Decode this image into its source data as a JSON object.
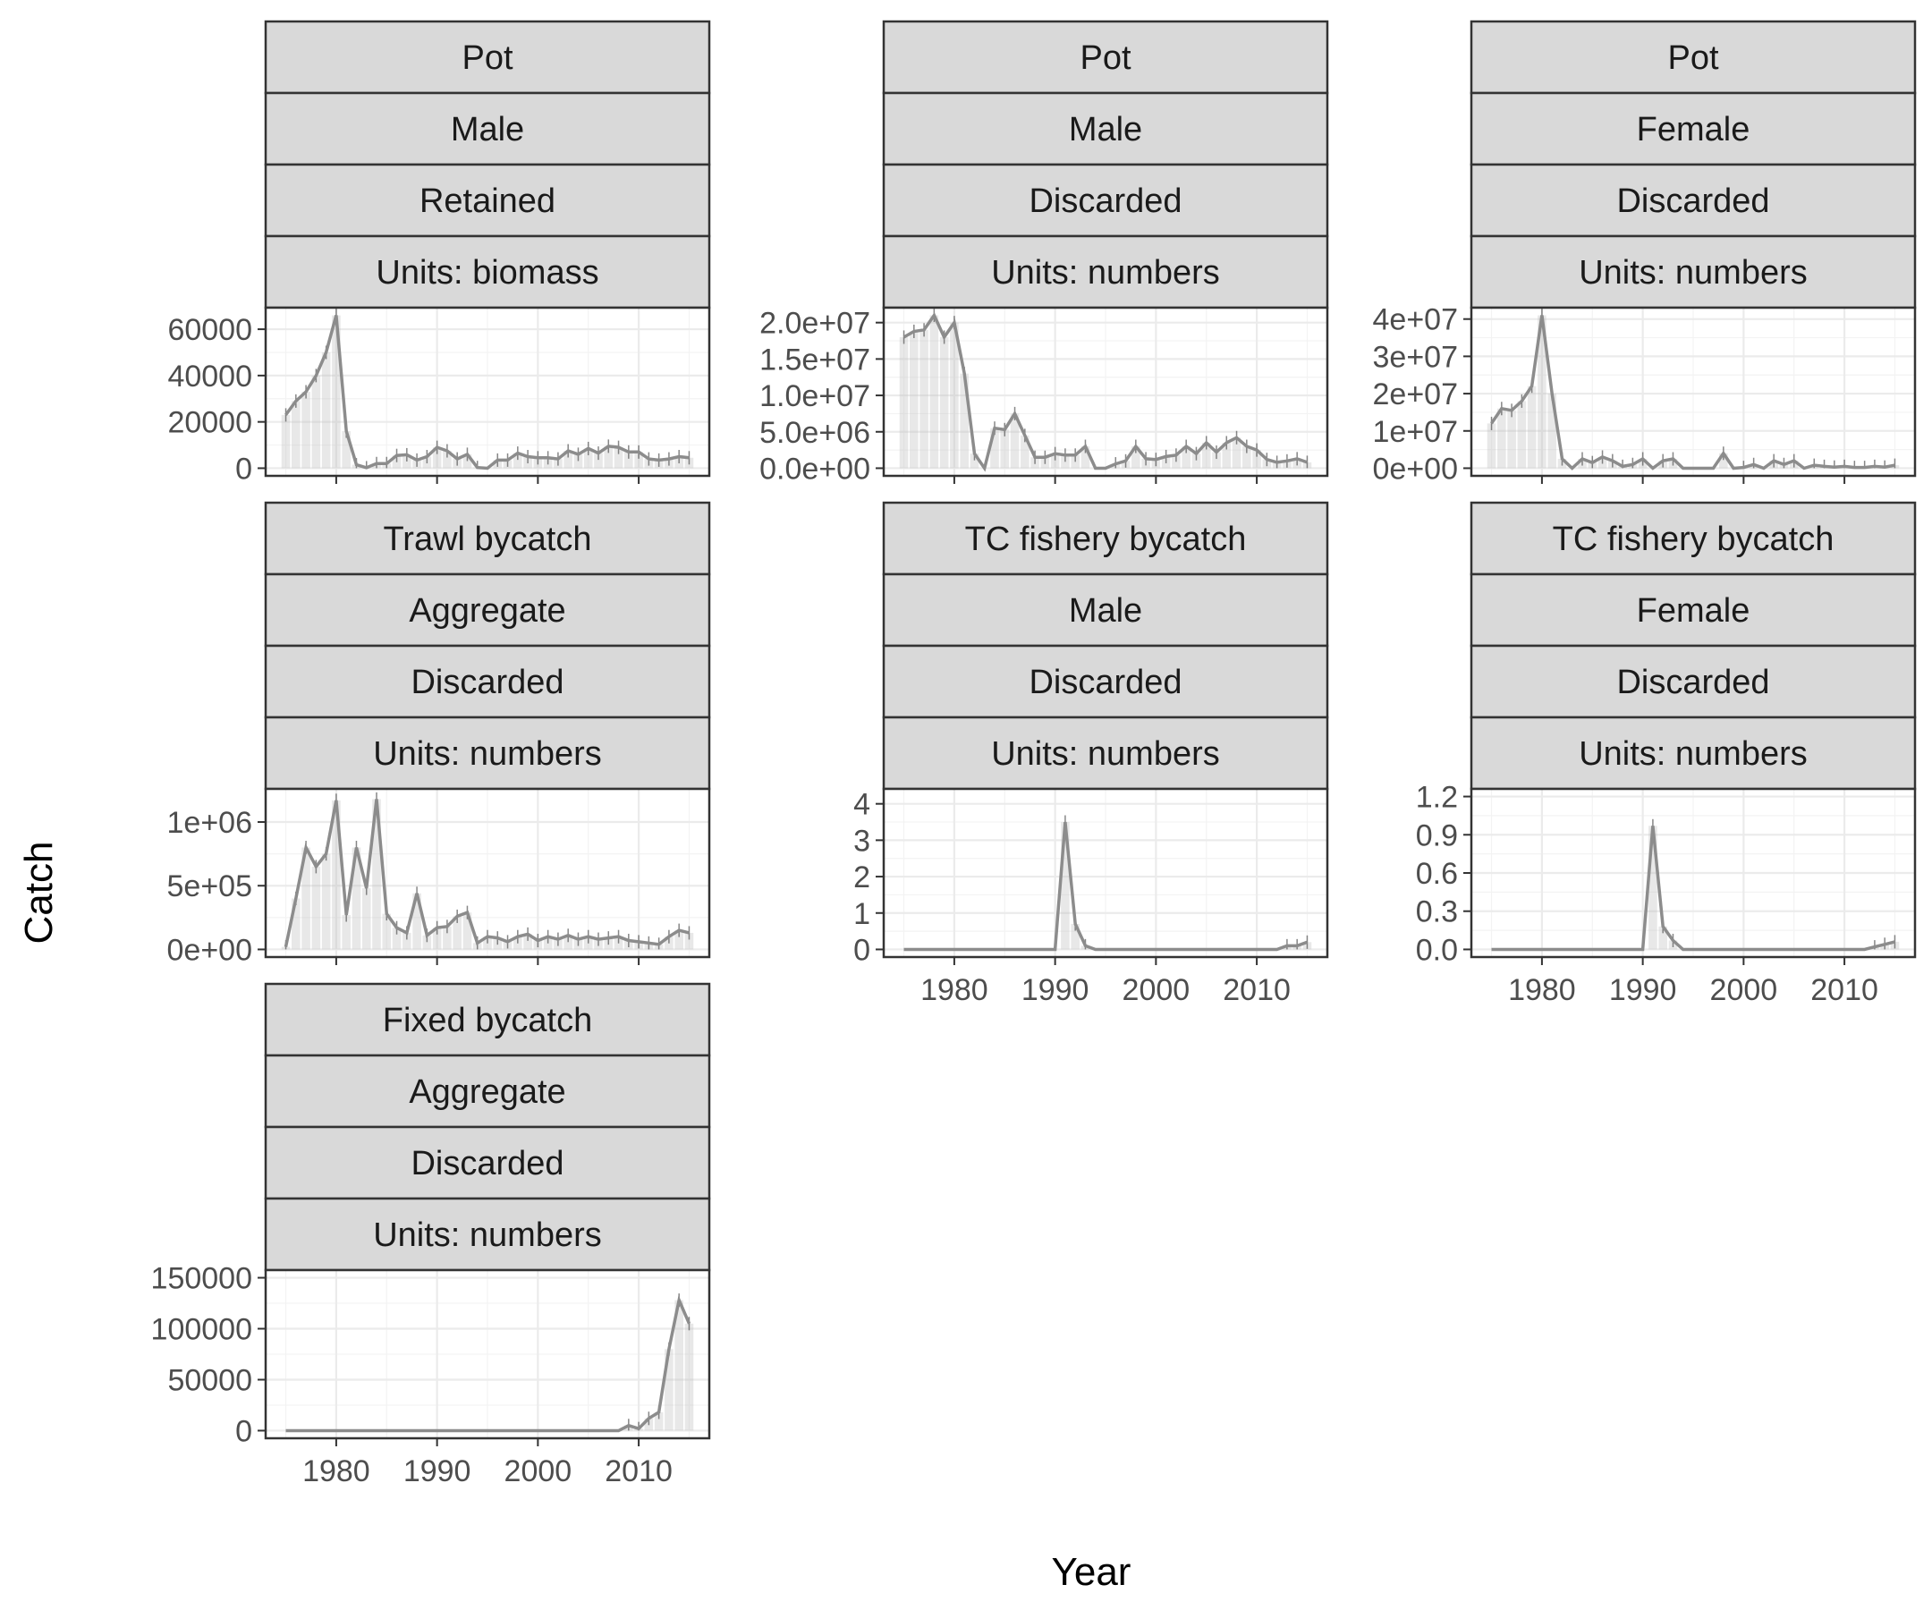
{
  "axes": {
    "xlabel": "Year",
    "ylabel": "Catch"
  },
  "colors": {
    "strip_fill": "#d9d9d9",
    "line": "#8c8c8c",
    "border": "#333333"
  },
  "chart_data": [
    {
      "type": "line",
      "strips": [
        "Pot",
        "Male",
        "Retained",
        "Units: biomass"
      ],
      "x": [
        1975,
        1976,
        1977,
        1978,
        1979,
        1980,
        1981,
        1982,
        1983,
        1984,
        1985,
        1986,
        1987,
        1988,
        1989,
        1990,
        1991,
        1992,
        1993,
        1994,
        1995,
        1996,
        1997,
        1998,
        1999,
        2000,
        2001,
        2002,
        2003,
        2004,
        2005,
        2006,
        2007,
        2008,
        2009,
        2010,
        2011,
        2012,
        2013,
        2014,
        2015
      ],
      "values": [
        23000,
        29000,
        33000,
        40000,
        50000,
        66000,
        16000,
        1500,
        200,
        2000,
        2000,
        5500,
        5800,
        3500,
        5000,
        9000,
        7500,
        4000,
        6000,
        300,
        0,
        3500,
        3500,
        6500,
        5000,
        4500,
        4500,
        4000,
        7500,
        6000,
        8500,
        6500,
        9500,
        9000,
        7000,
        7000,
        4000,
        3500,
        4000,
        5000,
        4500
      ],
      "ylim": [
        -3300,
        69300
      ],
      "yticks": [
        0,
        20000,
        40000,
        60000
      ],
      "ytick_labels": [
        "0",
        "20000",
        "40000",
        "60000"
      ],
      "xlim": [
        1973,
        2017
      ],
      "xticks": [
        1980,
        1990,
        2000,
        2010
      ],
      "xtick_labels": []
    },
    {
      "type": "line",
      "strips": [
        "Pot",
        "Male",
        "Discarded",
        "Units: numbers"
      ],
      "x": [
        1975,
        1976,
        1977,
        1978,
        1979,
        1980,
        1981,
        1982,
        1983,
        1984,
        1985,
        1986,
        1987,
        1988,
        1989,
        1990,
        1991,
        1992,
        1993,
        1994,
        1995,
        1996,
        1997,
        1998,
        1999,
        2000,
        2001,
        2002,
        2003,
        2004,
        2005,
        2006,
        2007,
        2008,
        2009,
        2010,
        2011,
        2012,
        2013,
        2014,
        2015
      ],
      "values": [
        18000000,
        18800000,
        19000000,
        21000000,
        18000000,
        20000000,
        13000000,
        2000000,
        0,
        5500000,
        5300000,
        7500000,
        4500000,
        1500000,
        1500000,
        2000000,
        1800000,
        1800000,
        3000000,
        0,
        0,
        600000,
        1000000,
        3000000,
        1300000,
        1200000,
        1600000,
        1800000,
        3000000,
        2000000,
        3500000,
        2200000,
        3500000,
        4200000,
        3000000,
        2500000,
        1200000,
        800000,
        1000000,
        1300000,
        800000
      ],
      "ylim": [
        -1050000,
        22050000
      ],
      "yticks": [
        0,
        5000000,
        10000000,
        15000000,
        20000000
      ],
      "ytick_labels": [
        "0.0e+00",
        "5.0e+06",
        "1.0e+07",
        "1.5e+07",
        "2.0e+07"
      ],
      "xlim": [
        1973,
        2017
      ],
      "xticks": [
        1980,
        1990,
        2000,
        2010
      ],
      "xtick_labels": []
    },
    {
      "type": "line",
      "strips": [
        "Pot",
        "Female",
        "Discarded",
        "Units: numbers"
      ],
      "x": [
        1975,
        1976,
        1977,
        1978,
        1979,
        1980,
        1981,
        1982,
        1983,
        1984,
        1985,
        1986,
        1987,
        1988,
        1989,
        1990,
        1991,
        1992,
        1993,
        1994,
        1995,
        1996,
        1997,
        1998,
        1999,
        2000,
        2001,
        2002,
        2003,
        2004,
        2005,
        2006,
        2007,
        2008,
        2009,
        2010,
        2011,
        2012,
        2013,
        2014,
        2015
      ],
      "values": [
        12000000,
        16000000,
        15500000,
        18000000,
        22000000,
        41000000,
        20000000,
        2500000,
        0,
        2500000,
        1500000,
        3000000,
        2000000,
        500000,
        1000000,
        2500000,
        0,
        2000000,
        2500000,
        0,
        0,
        0,
        0,
        4000000,
        0,
        200000,
        1000000,
        0,
        2000000,
        1000000,
        2000000,
        0,
        800000,
        500000,
        300000,
        500000,
        200000,
        200000,
        500000,
        300000,
        800000
      ],
      "ylim": [
        -2050000,
        43050000
      ],
      "yticks": [
        0,
        10000000,
        20000000,
        30000000,
        40000000
      ],
      "ytick_labels": [
        "0e+00",
        "1e+07",
        "2e+07",
        "3e+07",
        "4e+07"
      ],
      "xlim": [
        1973,
        2017
      ],
      "xticks": [
        1980,
        1990,
        2000,
        2010
      ],
      "xtick_labels": []
    },
    {
      "type": "line",
      "strips": [
        "Trawl bycatch",
        "Aggregate",
        "Discarded",
        "Units: numbers"
      ],
      "x": [
        1975,
        1976,
        1977,
        1978,
        1979,
        1980,
        1981,
        1982,
        1983,
        1984,
        1985,
        1986,
        1987,
        1988,
        1989,
        1990,
        1991,
        1992,
        1993,
        1994,
        1995,
        1996,
        1997,
        1998,
        1999,
        2000,
        2001,
        2002,
        2003,
        2004,
        2005,
        2006,
        2007,
        2008,
        2009,
        2010,
        2011,
        2012,
        2013,
        2014,
        2015
      ],
      "values": [
        20000,
        400000,
        800000,
        650000,
        750000,
        1170000,
        270000,
        800000,
        480000,
        1180000,
        280000,
        170000,
        130000,
        440000,
        110000,
        170000,
        180000,
        260000,
        290000,
        50000,
        100000,
        90000,
        60000,
        100000,
        120000,
        70000,
        100000,
        80000,
        110000,
        80000,
        100000,
        80000,
        90000,
        100000,
        70000,
        60000,
        50000,
        40000,
        100000,
        150000,
        130000
      ],
      "ylim": [
        -60000,
        1260000
      ],
      "yticks": [
        0,
        500000,
        1000000
      ],
      "ytick_labels": [
        "0e+00",
        "5e+05",
        "1e+06"
      ],
      "xlim": [
        1973,
        2017
      ],
      "xticks": [
        1980,
        1990,
        2000,
        2010
      ],
      "xtick_labels": []
    },
    {
      "type": "line",
      "strips": [
        "TC fishery bycatch",
        "Male",
        "Discarded",
        "Units: numbers"
      ],
      "x": [
        1975,
        1976,
        1977,
        1978,
        1979,
        1980,
        1981,
        1982,
        1983,
        1984,
        1985,
        1986,
        1987,
        1988,
        1989,
        1990,
        1991,
        1992,
        1993,
        1994,
        1995,
        1996,
        1997,
        1998,
        1999,
        2000,
        2001,
        2002,
        2003,
        2004,
        2005,
        2006,
        2007,
        2008,
        2009,
        2010,
        2011,
        2012,
        2013,
        2014,
        2015
      ],
      "values": [
        0,
        0,
        0,
        0,
        0,
        0,
        0,
        0,
        0,
        0,
        0,
        0,
        0,
        0,
        0,
        0,
        3.5,
        0.7,
        0.1,
        0,
        0,
        0,
        0,
        0,
        0,
        0,
        0,
        0,
        0,
        0,
        0,
        0,
        0,
        0,
        0,
        0,
        0,
        0,
        0.1,
        0.1,
        0.2
      ],
      "ylim": [
        -0.21,
        4.41
      ],
      "yticks": [
        0,
        1,
        2,
        3,
        4
      ],
      "ytick_labels": [
        "0",
        "1",
        "2",
        "3",
        "4"
      ],
      "xlim": [
        1973,
        2017
      ],
      "xticks": [
        1980,
        1990,
        2000,
        2010
      ],
      "xtick_labels": [
        "1980",
        "1990",
        "2000",
        "2010"
      ]
    },
    {
      "type": "line",
      "strips": [
        "TC fishery bycatch",
        "Female",
        "Discarded",
        "Units: numbers"
      ],
      "x": [
        1975,
        1976,
        1977,
        1978,
        1979,
        1980,
        1981,
        1982,
        1983,
        1984,
        1985,
        1986,
        1987,
        1988,
        1989,
        1990,
        1991,
        1992,
        1993,
        1994,
        1995,
        1996,
        1997,
        1998,
        1999,
        2000,
        2001,
        2002,
        2003,
        2004,
        2005,
        2006,
        2007,
        2008,
        2009,
        2010,
        2011,
        2012,
        2013,
        2014,
        2015
      ],
      "values": [
        0,
        0,
        0,
        0,
        0,
        0,
        0,
        0,
        0,
        0,
        0,
        0,
        0,
        0,
        0,
        0,
        0.97,
        0.18,
        0.07,
        0,
        0,
        0,
        0,
        0,
        0,
        0,
        0,
        0,
        0,
        0,
        0,
        0,
        0,
        0,
        0,
        0,
        0,
        0,
        0.02,
        0.04,
        0.06
      ],
      "ylim": [
        -0.06,
        1.26
      ],
      "yticks": [
        0,
        0.3,
        0.6,
        0.9,
        1.2
      ],
      "ytick_labels": [
        "0.0",
        "0.3",
        "0.6",
        "0.9",
        "1.2"
      ],
      "xlim": [
        1973,
        2017
      ],
      "xticks": [
        1980,
        1990,
        2000,
        2010
      ],
      "xtick_labels": [
        "1980",
        "1990",
        "2000",
        "2010"
      ]
    },
    {
      "type": "line",
      "strips": [
        "Fixed bycatch",
        "Aggregate",
        "Discarded",
        "Units: numbers"
      ],
      "x": [
        1975,
        1976,
        1977,
        1978,
        1979,
        1980,
        1981,
        1982,
        1983,
        1984,
        1985,
        1986,
        1987,
        1988,
        1989,
        1990,
        1991,
        1992,
        1993,
        1994,
        1995,
        1996,
        1997,
        1998,
        1999,
        2000,
        2001,
        2002,
        2003,
        2004,
        2005,
        2006,
        2007,
        2008,
        2009,
        2010,
        2011,
        2012,
        2013,
        2014,
        2015
      ],
      "values": [
        0,
        0,
        0,
        0,
        0,
        0,
        0,
        0,
        0,
        0,
        0,
        0,
        0,
        0,
        0,
        0,
        0,
        0,
        0,
        0,
        0,
        0,
        0,
        0,
        0,
        0,
        0,
        0,
        0,
        0,
        0,
        0,
        0,
        0,
        5000,
        2000,
        12000,
        18000,
        80000,
        128000,
        105000
      ],
      "ylim": [
        -7500,
        157500
      ],
      "yticks": [
        0,
        50000,
        100000,
        150000
      ],
      "ytick_labels": [
        "0",
        "50000",
        "100000",
        "150000"
      ],
      "xlim": [
        1973,
        2017
      ],
      "xticks": [
        1980,
        1990,
        2000,
        2010
      ],
      "xtick_labels": [
        "1980",
        "1990",
        "2000",
        "2010"
      ]
    }
  ]
}
